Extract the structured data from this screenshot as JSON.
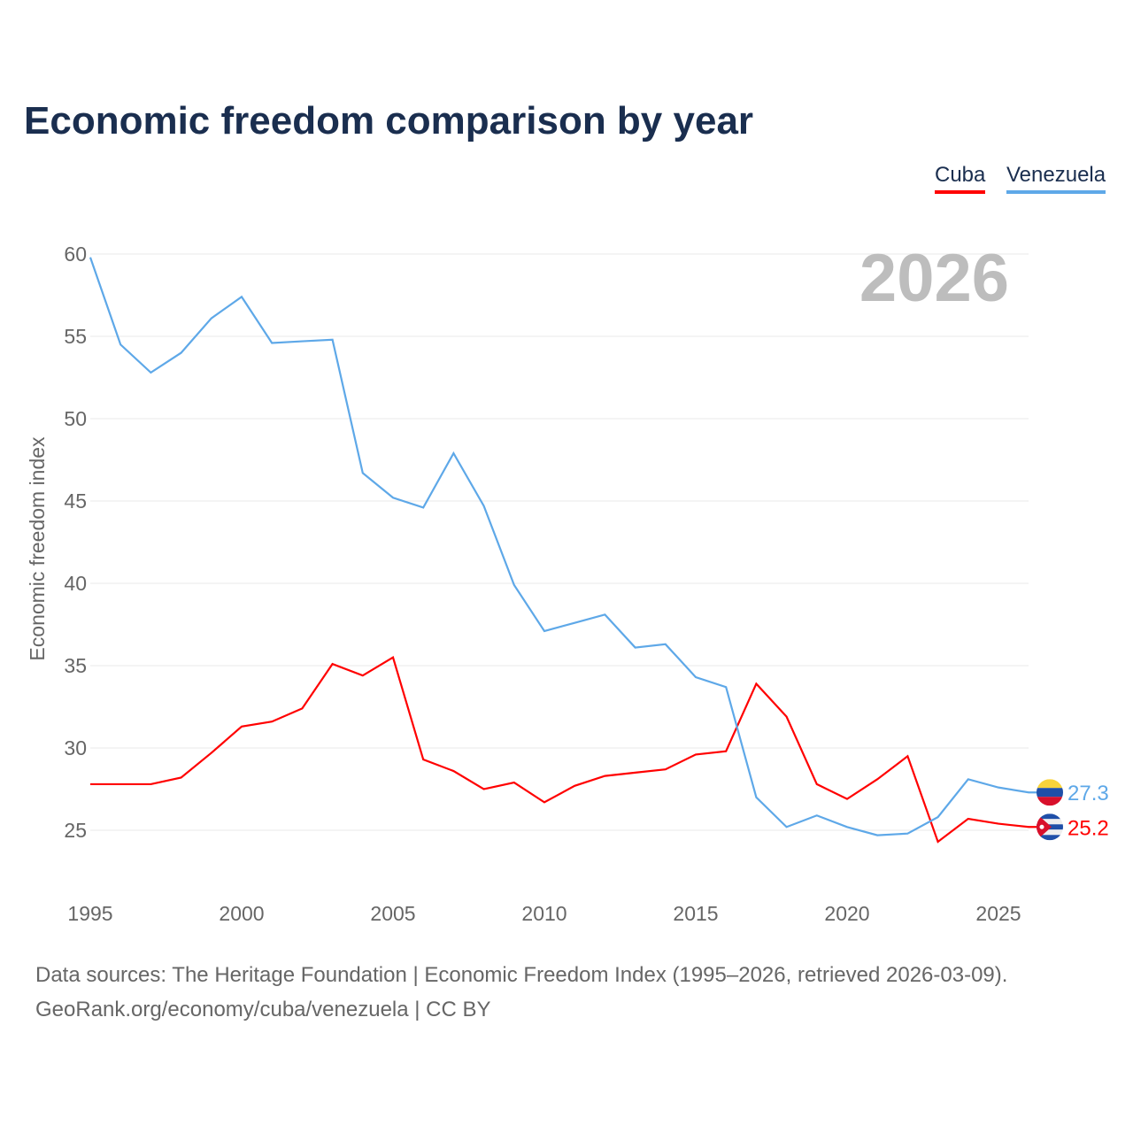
{
  "title": "Economic freedom comparison by year",
  "footer": {
    "line1": "Data sources: The Heritage Foundation | Economic Freedom Index (1995–2026, retrieved 2026-03-09).",
    "line2": "GeoRank.org/economy/cuba/venezuela | CC BY"
  },
  "chart_data": {
    "type": "line",
    "title": "Economic freedom comparison by year",
    "ylabel": "Economic freedom index",
    "xlabel": "",
    "year_label": "2026",
    "ylim": [
      21,
      60
    ],
    "yticks": [
      25,
      30,
      35,
      40,
      45,
      50,
      55,
      60
    ],
    "xticks": [
      1995,
      2000,
      2005,
      2010,
      2015,
      2020,
      2025
    ],
    "xlim": [
      1995,
      2026
    ],
    "grid": true,
    "legend_position": "top-right",
    "x": [
      1995,
      1996,
      1997,
      1998,
      1999,
      2000,
      2001,
      2002,
      2003,
      2004,
      2005,
      2006,
      2007,
      2008,
      2009,
      2010,
      2011,
      2012,
      2013,
      2014,
      2015,
      2016,
      2017,
      2018,
      2019,
      2020,
      2021,
      2022,
      2023,
      2024,
      2025,
      2026
    ],
    "series": [
      {
        "name": "Cuba",
        "color": "#ff0000",
        "end_label": "25.2",
        "values": [
          27.8,
          27.8,
          27.8,
          28.2,
          29.7,
          31.3,
          31.6,
          32.4,
          35.1,
          34.4,
          35.5,
          29.3,
          28.6,
          27.5,
          27.9,
          26.7,
          27.7,
          28.3,
          28.5,
          28.7,
          29.6,
          29.8,
          33.9,
          31.9,
          27.8,
          26.9,
          28.1,
          29.5,
          24.3,
          25.7,
          25.4,
          25.2
        ]
      },
      {
        "name": "Venezuela",
        "color": "#5ea8e8",
        "end_label": "27.3",
        "values": [
          59.8,
          54.5,
          52.8,
          54.0,
          56.1,
          57.4,
          54.6,
          54.7,
          54.8,
          46.7,
          45.2,
          44.6,
          47.9,
          44.7,
          39.9,
          37.1,
          37.6,
          38.1,
          36.1,
          36.3,
          34.3,
          33.7,
          27.0,
          25.2,
          25.9,
          25.2,
          24.7,
          24.8,
          25.8,
          28.1,
          27.6,
          27.3
        ]
      }
    ]
  }
}
